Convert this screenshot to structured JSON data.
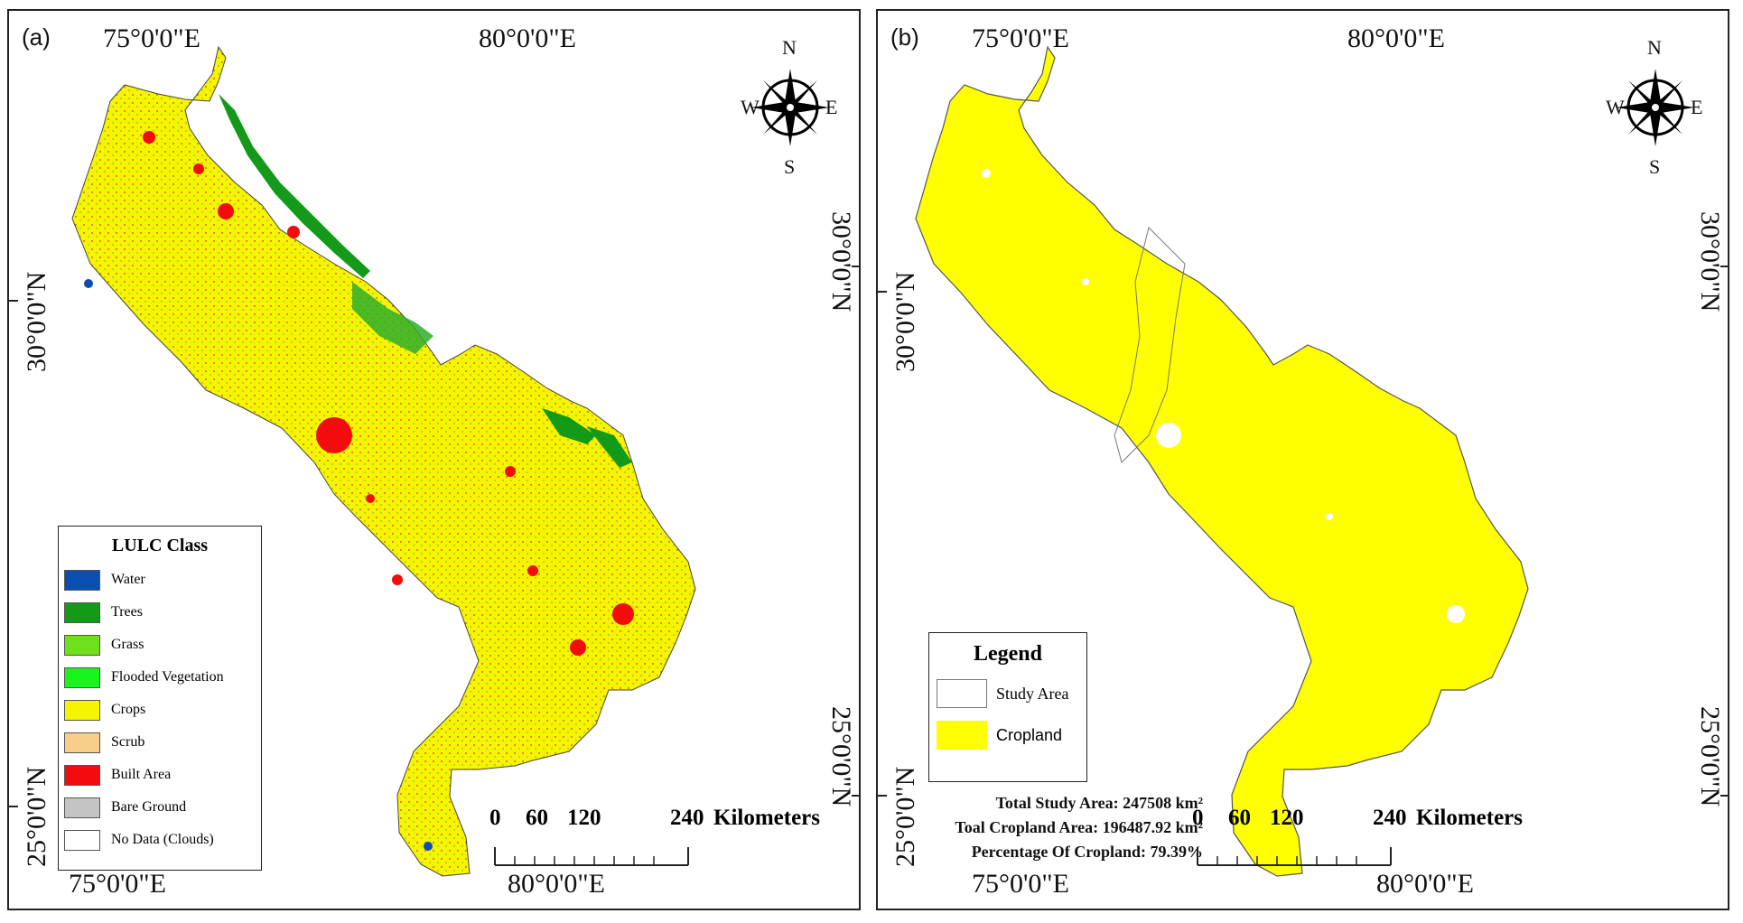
{
  "panel_a": {
    "label": "(a)",
    "top_lon_labels": [
      "75°0'0\"E",
      "80°0'0\"E"
    ],
    "bottom_lon_labels": [
      "75°0'0\"E",
      "80°0'0\"E"
    ],
    "left_lat_labels": [
      "30°0'0\"N",
      "25°0'0\"N"
    ],
    "right_lat_labels": [
      "30°0'0\"N",
      "25°0'0\"N"
    ],
    "compass": {
      "n": "N",
      "s": "S",
      "e": "E",
      "w": "W",
      "icon": "compass-rose-icon"
    },
    "legend": {
      "title": "LULC Class",
      "items": [
        {
          "label": "Water",
          "color": "#0a4fb0"
        },
        {
          "label": "Trees",
          "color": "#129a18"
        },
        {
          "label": "Grass",
          "color": "#6fe01c"
        },
        {
          "label": "Flooded Vegetation",
          "color": "#18f51e"
        },
        {
          "label": "Crops",
          "color": "#f5f500"
        },
        {
          "label": "Scrub",
          "color": "#f8cf8a"
        },
        {
          "label": "Built Area",
          "color": "#f20c0c"
        },
        {
          "label": "Bare Ground",
          "color": "#c4c4c4"
        },
        {
          "label": "No Data (Clouds)",
          "color": "#ffffff"
        }
      ]
    },
    "scale": {
      "ticks": [
        "0",
        "60",
        "120",
        "240"
      ],
      "unit": "Kilometers"
    }
  },
  "panel_b": {
    "label": "(b)",
    "top_lon_labels": [
      "75°0'0\"E",
      "80°0'0\"E"
    ],
    "bottom_lon_labels": [
      "75°0'0\"E",
      "80°0'0\"E"
    ],
    "left_lat_labels": [
      "30°0'0\"N",
      "25°0'0\"N"
    ],
    "right_lat_labels": [
      "30°0'0\"N",
      "25°0'0\"N"
    ],
    "compass": {
      "n": "N",
      "s": "S",
      "e": "E",
      "w": "W",
      "icon": "compass-rose-icon"
    },
    "legend": {
      "title": "Legend",
      "items": [
        {
          "label": "Study Area",
          "color": "#ffffff"
        },
        {
          "label": "Cropland",
          "color": "#ffff00"
        }
      ]
    },
    "stats": [
      "Total Study Area: 247508 km²",
      "Toal Cropland Area: 196487.92 km²",
      "Percentage Of Cropland: 79.39%"
    ],
    "scale": {
      "ticks": [
        "0",
        "60",
        "120",
        "240"
      ],
      "unit": "Kilometers"
    }
  }
}
